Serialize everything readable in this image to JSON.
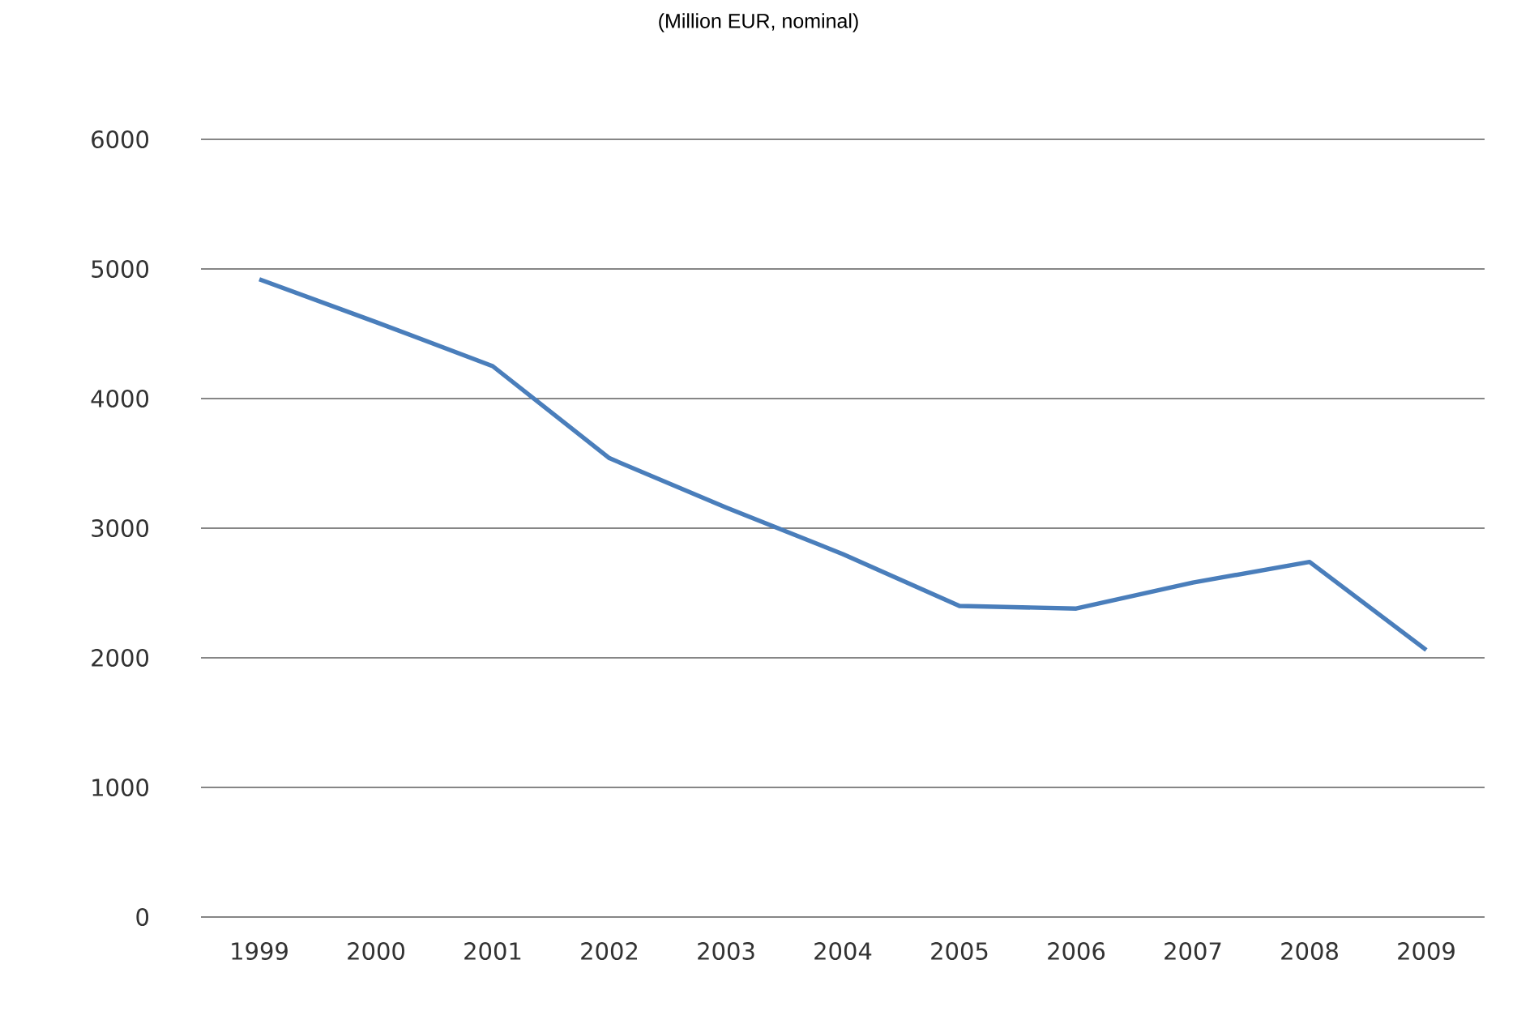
{
  "chart_data": {
    "type": "line",
    "title": "(Million EUR, nominal)",
    "categories": [
      "1999",
      "2000",
      "2001",
      "2002",
      "2003",
      "2004",
      "2005",
      "2006",
      "2007",
      "2008",
      "2009"
    ],
    "series": [
      {
        "color": "#4a7ebb",
        "values": [
          4920,
          4590,
          4250,
          3540,
          3160,
          2800,
          2400,
          2380,
          2580,
          2740,
          2060
        ]
      }
    ],
    "ylim": [
      0,
      6000
    ],
    "yticks": [
      0,
      1000,
      2000,
      3000,
      4000,
      5000,
      6000
    ],
    "grid": "y",
    "marker": "none",
    "line_style": "solid"
  }
}
